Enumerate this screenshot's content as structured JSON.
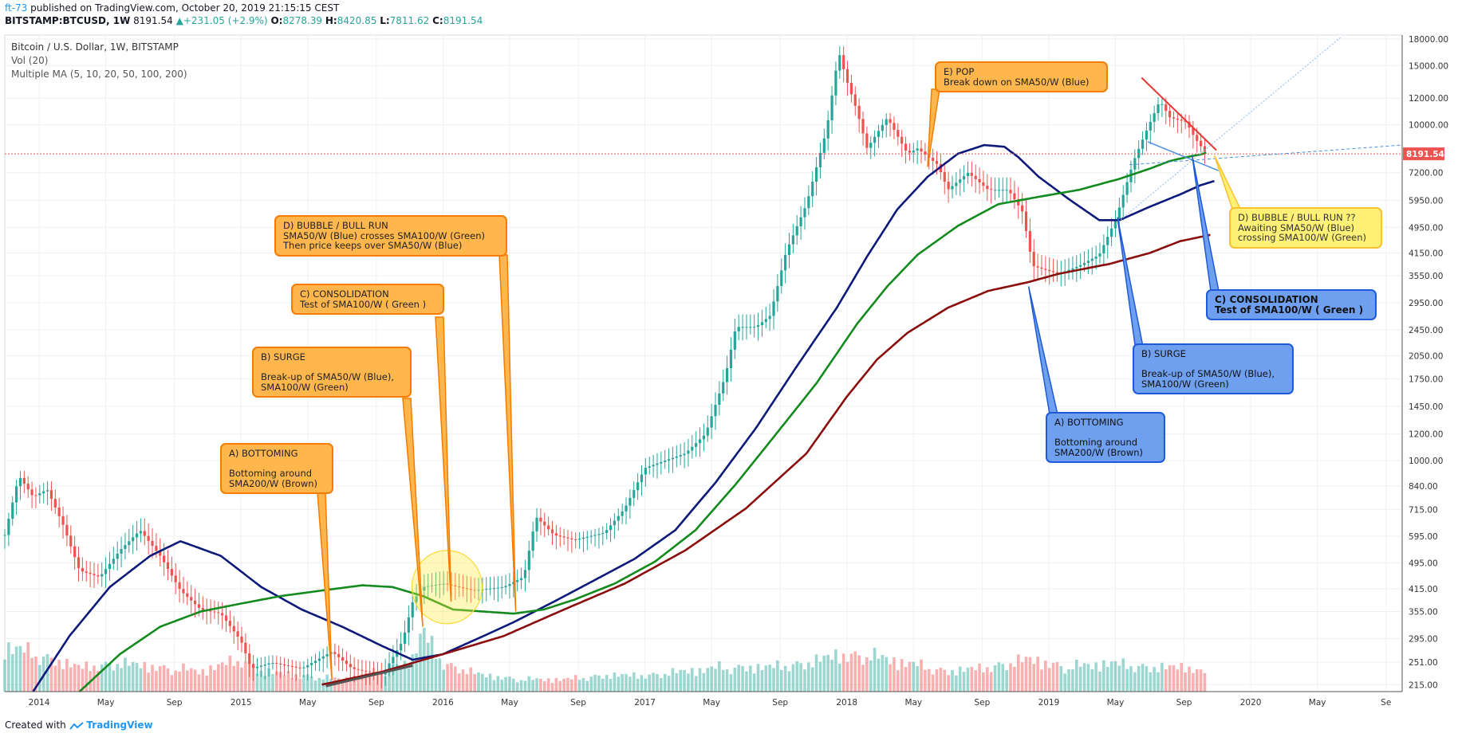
{
  "header": {
    "user": "ft-73",
    "published": "published on TradingView.com, October 20, 2019 21:15:15 CEST",
    "symbol": "BITSTAMP:BTCUSD, 1W",
    "last": "8191.54",
    "change": "+231.05 (+2.9%)",
    "o_label": "O:",
    "o_value": "8278.39",
    "h_label": "H:",
    "h_value": "8420.85",
    "l_label": "L:",
    "l_value": "7811.62",
    "c_label": "C:",
    "c_value": "8191.54"
  },
  "legend": {
    "title": "Bitcoin / U.S. Dollar, 1W, BITSTAMP",
    "volume": "Vol (20)",
    "ma": "Multiple MA (5, 10, 20, 50, 100, 200)"
  },
  "footer": {
    "created": "Created with",
    "brand": "TradingView"
  },
  "colors": {
    "up": "#26a69a",
    "down": "#ef5350",
    "sma50": "#0d1a7a",
    "sma100": "#138a1e",
    "sma200": "#8b0e0e",
    "price_line": "#ef5350"
  },
  "notes": {
    "left_a": "A) BOTTOMING\n\nBottoming around\nSMA200/W (Brown)",
    "left_b": "B) SURGE\n\nBreak-up of SMA50/W (Blue),\nSMA100/W (Green)",
    "left_c": "C) CONSOLIDATION\nTest of SMA100/W ( Green )",
    "left_d": "D) BUBBLE / BULL RUN\nSMA50/W (Blue) crosses SMA100/W (Green)\nThen price keeps over SMA50/W (Blue)",
    "e_pop": "E) POP\nBreak down on SMA50/W (Blue)",
    "right_a": "A) BOTTOMING\n\nBottoming around\nSMA200/W (Brown)",
    "right_b": "B) SURGE\n\nBreak-up of SMA50/W (Blue),\nSMA100/W (Green)",
    "right_c": "C) CONSOLIDATION\nTest of SMA100/W ( Green )",
    "right_d": "D) BUBBLE / BULL RUN ??\nAwaiting SMA50/W (Blue)\ncrossing SMA100/W (Green)"
  },
  "chart_data": {
    "type": "line",
    "title": "Bitcoin / U.S. Dollar, 1W, BITSTAMP",
    "y_scale": "log",
    "ylim": [
      205,
      18500
    ],
    "y_ticks": [
      "18000.00",
      "15000.00",
      "12000.00",
      "10000.00",
      "7200.00",
      "5950.00",
      "4950.00",
      "4150.00",
      "3550.00",
      "2950.00",
      "2450.00",
      "2050.00",
      "1750.00",
      "1450.00",
      "1200.00",
      "1000.00",
      "840.00",
      "715.00",
      "595.00",
      "495.00",
      "415.00",
      "355.00",
      "295.00",
      "251.00",
      "215.00"
    ],
    "last_price_label": "8191.54",
    "x_ticks": [
      "2014",
      "May",
      "Sep",
      "2015",
      "May",
      "Sep",
      "2016",
      "May",
      "Sep",
      "2017",
      "May",
      "Sep",
      "2018",
      "May",
      "Sep",
      "2019",
      "May",
      "Sep",
      "2020",
      "May",
      "Se"
    ],
    "x_tick_times": [
      2014.0,
      2014.33,
      2014.67,
      2015.0,
      2015.33,
      2015.67,
      2016.0,
      2016.33,
      2016.67,
      2017.0,
      2017.33,
      2017.67,
      2018.0,
      2018.33,
      2018.67,
      2019.0,
      2019.33,
      2019.67,
      2020.0,
      2020.33,
      2020.67
    ],
    "price": {
      "name": "BTCUSD close (approx.)",
      "t": [
        2013.83,
        2013.9,
        2013.97,
        2014.04,
        2014.12,
        2014.2,
        2014.3,
        2014.4,
        2014.5,
        2014.6,
        2014.7,
        2014.8,
        2014.9,
        2015.0,
        2015.05,
        2015.15,
        2015.3,
        2015.45,
        2015.55,
        2015.7,
        2015.8,
        2015.85,
        2015.9,
        2016.0,
        2016.15,
        2016.3,
        2016.4,
        2016.46,
        2016.55,
        2016.65,
        2016.8,
        2016.9,
        2017.0,
        2017.1,
        2017.2,
        2017.3,
        2017.4,
        2017.45,
        2017.55,
        2017.62,
        2017.7,
        2017.8,
        2017.9,
        2017.96,
        2018.0,
        2018.05,
        2018.1,
        2018.2,
        2018.3,
        2018.35,
        2018.45,
        2018.5,
        2018.6,
        2018.7,
        2018.8,
        2018.87,
        2018.92,
        2018.98,
        2019.05,
        2019.15,
        2019.25,
        2019.33,
        2019.42,
        2019.48,
        2019.55,
        2019.6,
        2019.68,
        2019.72,
        2019.78
      ],
      "values": [
        600,
        900,
        780,
        820,
        640,
        470,
        450,
        540,
        620,
        520,
        410,
        360,
        350,
        290,
        240,
        250,
        240,
        270,
        240,
        230,
        290,
        380,
        420,
        430,
        410,
        420,
        450,
        680,
        600,
        580,
        610,
        720,
        950,
        1000,
        1050,
        1200,
        1800,
        2500,
        2500,
        2700,
        4200,
        5800,
        9700,
        16500,
        13500,
        11000,
        8500,
        10500,
        8200,
        8500,
        7600,
        6400,
        7200,
        6400,
        6400,
        5500,
        3800,
        3700,
        3600,
        3800,
        4100,
        5200,
        7800,
        9500,
        11800,
        10500,
        10200,
        9200,
        8192
      ]
    },
    "sma50": {
      "name": "SMA50/W (Blue)",
      "t": [
        2013.97,
        2014.15,
        2014.35,
        2014.55,
        2014.7,
        2014.9,
        2015.1,
        2015.3,
        2015.5,
        2015.7,
        2015.85,
        2016.0,
        2016.2,
        2016.35,
        2016.55,
        2016.75,
        2016.95,
        2017.15,
        2017.35,
        2017.55,
        2017.75,
        2017.95,
        2018.1,
        2018.25,
        2018.4,
        2018.55,
        2018.68,
        2018.78,
        2018.85,
        2018.95,
        2019.1,
        2019.25,
        2019.35,
        2019.5,
        2019.65,
        2019.75,
        2019.82
      ],
      "values": [
        205,
        300,
        420,
        520,
        575,
        520,
        420,
        360,
        320,
        280,
        255,
        265,
        300,
        330,
        380,
        440,
        510,
        620,
        860,
        1250,
        1900,
        2850,
        4050,
        5600,
        7000,
        8200,
        8700,
        8600,
        8000,
        7000,
        6000,
        5200,
        5200,
        5700,
        6200,
        6600,
        6800
      ]
    },
    "sma100": {
      "name": "SMA100/W (Green)",
      "t": [
        2014.2,
        2014.4,
        2014.6,
        2014.8,
        2015.0,
        2015.2,
        2015.4,
        2015.6,
        2015.75,
        2015.9,
        2016.05,
        2016.2,
        2016.35,
        2016.5,
        2016.65,
        2016.85,
        2017.05,
        2017.25,
        2017.45,
        2017.65,
        2017.85,
        2018.05,
        2018.2,
        2018.35,
        2018.55,
        2018.75,
        2018.95,
        2019.15,
        2019.35,
        2019.5,
        2019.6,
        2019.7,
        2019.75,
        2019.78
      ],
      "values": [
        205,
        265,
        320,
        355,
        375,
        395,
        410,
        425,
        420,
        395,
        360,
        355,
        350,
        360,
        385,
        430,
        500,
        620,
        850,
        1200,
        1700,
        2550,
        3300,
        4100,
        5000,
        5800,
        6100,
        6400,
        6900,
        7400,
        7800,
        8050,
        8150,
        8250
      ]
    },
    "sma200": {
      "name": "SMA200/W (Brown)",
      "t": [
        2015.4,
        2015.7,
        2016.0,
        2016.3,
        2016.6,
        2016.9,
        2017.2,
        2017.5,
        2017.8,
        2018.0,
        2018.15,
        2018.3,
        2018.5,
        2018.7,
        2018.9,
        2019.05,
        2019.3,
        2019.5,
        2019.65,
        2019.8
      ],
      "values": [
        215,
        235,
        265,
        300,
        360,
        430,
        540,
        720,
        1050,
        1550,
        2000,
        2400,
        2850,
        3200,
        3400,
        3600,
        3850,
        4150,
        4500,
        4700
      ]
    },
    "volume": {
      "name": "Vol (20)",
      "note": "relative weekly volume bars, 0-1 scale",
      "t": [
        2013.85,
        2014.0,
        2014.2,
        2014.4,
        2014.6,
        2014.8,
        2015.0,
        2015.1,
        2015.3,
        2015.5,
        2015.7,
        2015.85,
        2015.9,
        2016.0,
        2016.2,
        2016.4,
        2016.6,
        2016.8,
        2017.0,
        2017.2,
        2017.4,
        2017.6,
        2017.8,
        2017.95,
        2018.1,
        2018.3,
        2018.5,
        2018.7,
        2018.9,
        2019.1,
        2019.3,
        2019.5,
        2019.7,
        2019.8
      ],
      "values": [
        0.55,
        0.45,
        0.3,
        0.35,
        0.3,
        0.25,
        0.4,
        0.25,
        0.2,
        0.15,
        0.25,
        0.4,
        0.75,
        0.35,
        0.2,
        0.15,
        0.15,
        0.2,
        0.2,
        0.25,
        0.3,
        0.3,
        0.35,
        0.45,
        0.45,
        0.35,
        0.25,
        0.3,
        0.4,
        0.3,
        0.35,
        0.3,
        0.3,
        0.2
      ]
    }
  }
}
